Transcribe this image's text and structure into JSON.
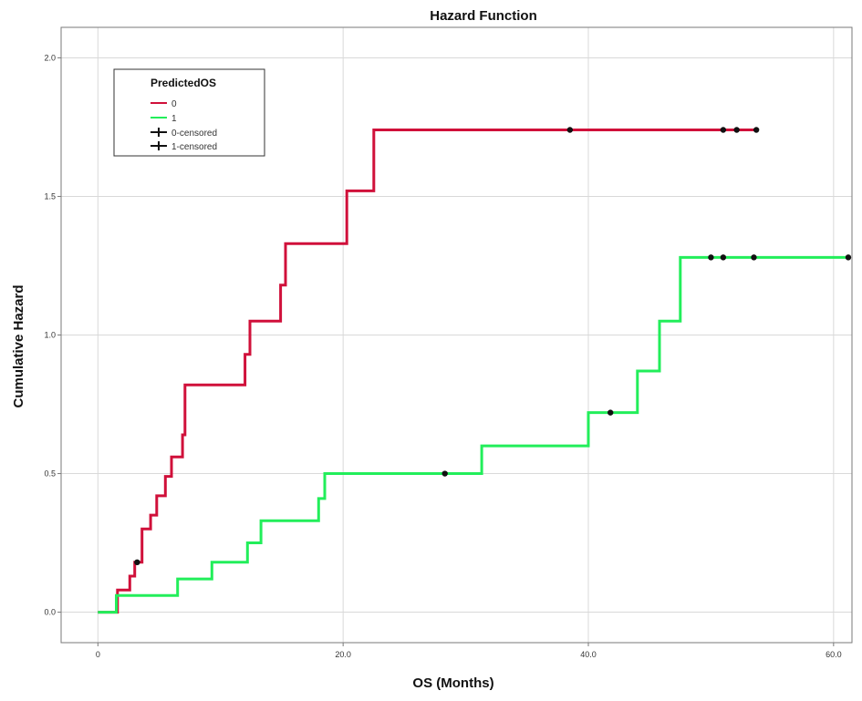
{
  "chart_data": {
    "type": "line",
    "step": true,
    "title": "Hazard Function",
    "xlabel": "OS (Months)",
    "ylabel": "Cumulative Hazard",
    "xlim": [
      -3,
      61.5
    ],
    "ylim": [
      -0.11,
      2.11
    ],
    "x_ticks": [
      0,
      20,
      40,
      60
    ],
    "x_tick_labels": [
      "0",
      "20.0",
      "40.0",
      "60.0"
    ],
    "y_ticks": [
      0,
      0.5,
      1.0,
      1.5,
      2.0
    ],
    "y_tick_labels": [
      "0.0",
      "0.5",
      "1.0",
      "1.5",
      "2.0"
    ],
    "grid": true,
    "legend": {
      "title": "PredictedOS",
      "placement": "top-left",
      "entries": [
        "0",
        "1",
        "0-censored",
        "1-censored"
      ]
    },
    "series": [
      {
        "name": "0",
        "color": "#d0103a",
        "x": [
          0,
          1.6,
          2.6,
          3.0,
          3.6,
          4.3,
          4.8,
          5.5,
          6.0,
          6.9,
          7.1,
          12.0,
          12.4,
          14.9,
          15.3,
          20.3,
          22.5,
          53.7
        ],
        "y": [
          0,
          0.08,
          0.13,
          0.18,
          0.3,
          0.35,
          0.42,
          0.49,
          0.56,
          0.64,
          0.82,
          0.93,
          1.05,
          1.18,
          1.33,
          1.52,
          1.74,
          1.74
        ]
      },
      {
        "name": "1",
        "color": "#22ee5a",
        "x": [
          0,
          1.5,
          6.5,
          9.3,
          12.2,
          13.3,
          18.0,
          18.5,
          31.3,
          40.0,
          44.0,
          45.8,
          47.5,
          56.0,
          61.2
        ],
        "y": [
          0,
          0.06,
          0.12,
          0.18,
          0.25,
          0.33,
          0.41,
          0.5,
          0.6,
          0.72,
          0.87,
          1.05,
          1.28,
          1.28,
          1.28
        ]
      }
    ],
    "censored": [
      {
        "series": "0",
        "x": [
          3.2,
          38.5,
          51.0,
          52.1,
          53.7
        ],
        "y": [
          0.18,
          1.74,
          1.74,
          1.74,
          1.74
        ]
      },
      {
        "series": "1",
        "x": [
          28.3,
          41.8,
          50.0,
          51.0,
          53.5,
          61.2
        ],
        "y": [
          0.5,
          0.72,
          1.28,
          1.28,
          1.28,
          1.28
        ]
      }
    ]
  }
}
